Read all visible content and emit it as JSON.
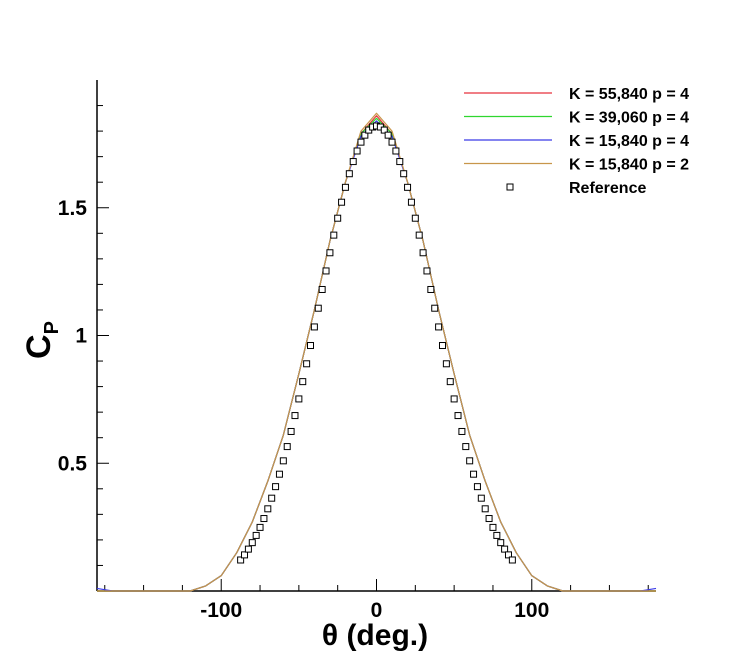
{
  "chart_data": {
    "type": "line",
    "xlabel": "θ (deg.)",
    "ylabel_main": "C",
    "ylabel_sub": "P",
    "xlim": [
      -180,
      180
    ],
    "ylim": [
      0,
      2.0
    ],
    "x_ticks": [
      -100,
      0,
      100
    ],
    "x_tick_labels": [
      "-100",
      "0",
      "100"
    ],
    "y_ticks": [
      0.5,
      1,
      1.5
    ],
    "y_tick_labels": [
      "0.5",
      "1",
      "1.5"
    ],
    "grid": false,
    "legend_position": "top-right",
    "series": [
      {
        "name": "K = 55,840 p = 4",
        "color": "#e8313c",
        "style": "line",
        "x": [
          -180,
          -170,
          -160,
          -150,
          -140,
          -130,
          -120,
          -110,
          -100,
          -90,
          -80,
          -70,
          -60,
          -50,
          -40,
          -30,
          -20,
          -10,
          0,
          10,
          20,
          30,
          40,
          50,
          60,
          70,
          80,
          90,
          100,
          110,
          120,
          130,
          140,
          150,
          160,
          170,
          180
        ],
        "y": [
          0,
          0,
          0,
          0,
          0,
          0,
          0,
          0.02,
          0.06,
          0.15,
          0.27,
          0.43,
          0.61,
          0.85,
          1.1,
          1.37,
          1.6,
          1.79,
          1.86,
          1.79,
          1.6,
          1.37,
          1.1,
          0.85,
          0.61,
          0.43,
          0.27,
          0.15,
          0.06,
          0.02,
          0,
          0,
          0,
          0,
          0,
          0,
          0
        ]
      },
      {
        "name": "K = 39,060 p = 4",
        "color": "#2fd62f",
        "style": "line",
        "x": [
          -180,
          -170,
          -160,
          -150,
          -140,
          -130,
          -120,
          -110,
          -100,
          -90,
          -80,
          -70,
          -60,
          -50,
          -40,
          -30,
          -20,
          -10,
          0,
          10,
          20,
          30,
          40,
          50,
          60,
          70,
          80,
          90,
          100,
          110,
          120,
          130,
          140,
          150,
          160,
          170,
          180
        ],
        "y": [
          0,
          0,
          0,
          0,
          0,
          0,
          0,
          0.02,
          0.06,
          0.15,
          0.27,
          0.43,
          0.61,
          0.85,
          1.1,
          1.37,
          1.6,
          1.79,
          1.85,
          1.79,
          1.6,
          1.37,
          1.1,
          0.85,
          0.61,
          0.43,
          0.27,
          0.15,
          0.06,
          0.02,
          0,
          0,
          0,
          0,
          0,
          0,
          0
        ]
      },
      {
        "name": "K = 15,840 p = 4",
        "color": "#3a3ae8",
        "style": "line",
        "x": [
          -180,
          -175,
          -170,
          -160,
          -150,
          -140,
          -130,
          -120,
          -110,
          -100,
          -90,
          -80,
          -70,
          -60,
          -50,
          -40,
          -30,
          -20,
          -10,
          0,
          10,
          20,
          30,
          40,
          50,
          60,
          70,
          80,
          90,
          100,
          110,
          120,
          130,
          140,
          150,
          160,
          170,
          175,
          180
        ],
        "y": [
          0.01,
          0.005,
          0,
          0,
          0,
          0,
          0,
          0,
          0.02,
          0.06,
          0.15,
          0.27,
          0.43,
          0.61,
          0.85,
          1.1,
          1.37,
          1.6,
          1.78,
          1.84,
          1.78,
          1.6,
          1.37,
          1.1,
          0.85,
          0.61,
          0.43,
          0.27,
          0.15,
          0.06,
          0.02,
          0,
          0,
          0,
          0,
          0,
          0,
          0.005,
          0.01
        ]
      },
      {
        "name": "K = 15,840 p = 2",
        "color": "#c8964a",
        "style": "line",
        "x": [
          -180,
          -170,
          -160,
          -150,
          -140,
          -130,
          -120,
          -110,
          -100,
          -90,
          -80,
          -70,
          -60,
          -50,
          -40,
          -30,
          -20,
          -10,
          0,
          10,
          20,
          30,
          40,
          50,
          60,
          70,
          80,
          90,
          100,
          110,
          120,
          130,
          140,
          150,
          160,
          170,
          180
        ],
        "y": [
          0,
          0,
          0,
          0,
          0,
          0,
          0,
          0.02,
          0.06,
          0.15,
          0.27,
          0.43,
          0.61,
          0.85,
          1.1,
          1.37,
          1.6,
          1.8,
          1.87,
          1.8,
          1.6,
          1.37,
          1.1,
          0.85,
          0.61,
          0.43,
          0.27,
          0.15,
          0.06,
          0.02,
          0,
          0,
          0,
          0,
          0,
          0,
          0
        ]
      },
      {
        "name": "Reference",
        "color": "#000000",
        "style": "square-markers",
        "x_range": [
          -87.5,
          87.5
        ],
        "x_step": 2.5,
        "peak": 1.82
      }
    ]
  }
}
